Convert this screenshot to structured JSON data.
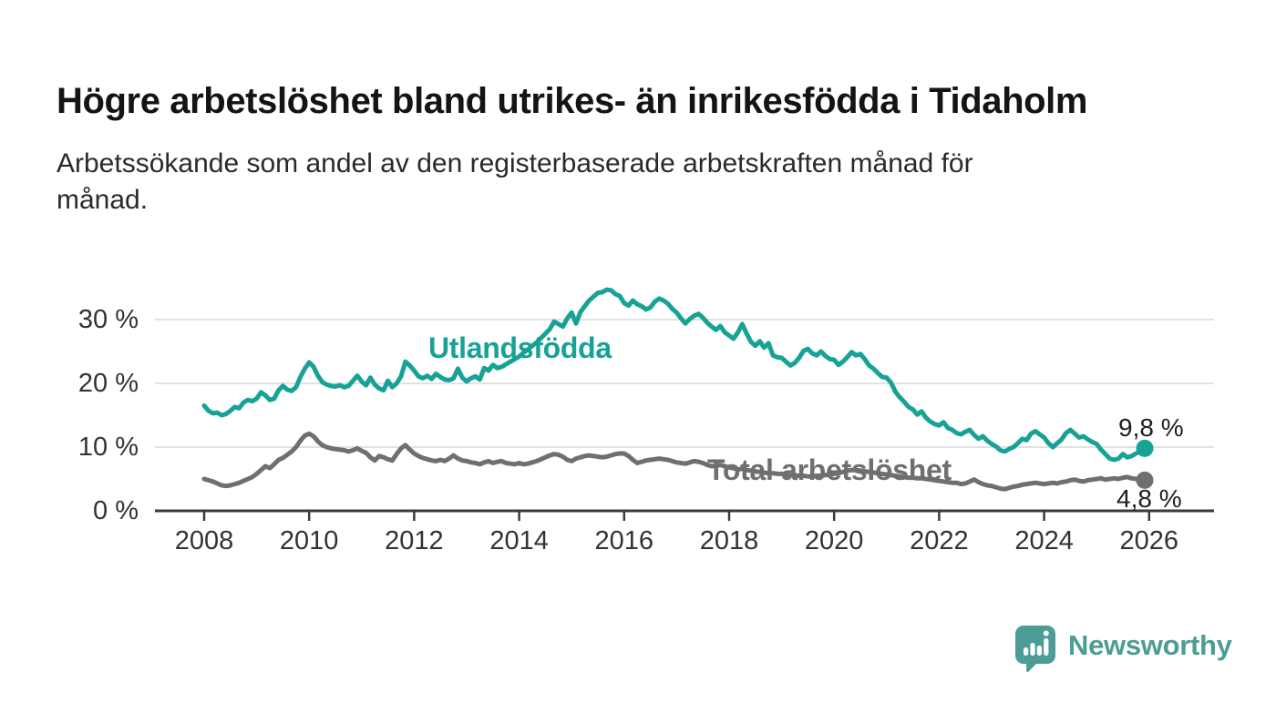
{
  "header": {
    "title": "Högre arbetslöshet bland utrikes- än inrikesfödda i Tidaholm",
    "subtitle_line1": "Arbetssökande som andel av den registerbaserade arbetskraften månad för",
    "subtitle_line2": "månad."
  },
  "branding": {
    "logo_text": "Newsworthy",
    "logo_color": "#4d9c97"
  },
  "chart_data": {
    "type": "line",
    "frequency": "monthly",
    "x_start": "2008-01",
    "x_end": "2025-12",
    "grid": "horizontal",
    "ylim": [
      0,
      36
    ],
    "xlim": [
      2008,
      2026.6
    ],
    "y_tick_values": [
      0,
      10,
      20,
      30
    ],
    "y_tick_labels": [
      "0 %",
      "10 %",
      "20 %",
      "30 %"
    ],
    "x_tick_values": [
      2008,
      2010,
      2012,
      2014,
      2016,
      2018,
      2020,
      2022,
      2024,
      2026
    ],
    "x_tick_labels": [
      "2008",
      "2010",
      "2012",
      "2014",
      "2016",
      "2018",
      "2020",
      "2022",
      "2024",
      "2026"
    ],
    "series": [
      {
        "name": "Utlandsfödda",
        "color": "#17a295",
        "end_label": "9,8 %",
        "last_value": 9.8,
        "values": [
          16.5,
          15.7,
          15.3,
          15.4,
          15.0,
          15.2,
          15.7,
          16.3,
          16.1,
          17.0,
          17.4,
          17.2,
          17.6,
          18.6,
          18.1,
          17.4,
          17.6,
          18.9,
          19.6,
          19.0,
          18.8,
          19.4,
          21.0,
          22.3,
          23.3,
          22.6,
          21.2,
          20.2,
          19.8,
          19.6,
          19.5,
          19.7,
          19.4,
          19.6,
          20.4,
          21.2,
          20.3,
          19.7,
          20.9,
          19.8,
          19.2,
          18.9,
          20.4,
          19.4,
          20.0,
          21.1,
          23.4,
          22.8,
          22.0,
          21.1,
          20.8,
          21.2,
          20.7,
          21.5,
          21.0,
          20.6,
          20.5,
          20.8,
          22.3,
          20.9,
          20.3,
          20.8,
          21.1,
          20.6,
          22.4,
          22.0,
          22.9,
          22.4,
          22.6,
          23.0,
          23.4,
          23.8,
          24.2,
          24.8,
          25.3,
          25.9,
          26.4,
          27.1,
          27.8,
          28.5,
          29.7,
          29.3,
          28.9,
          30.2,
          31.1,
          29.4,
          31.2,
          32.1,
          33.0,
          33.6,
          34.2,
          34.3,
          34.7,
          34.6,
          34.0,
          33.7,
          32.6,
          32.2,
          33.0,
          32.4,
          32.1,
          31.6,
          31.9,
          32.8,
          33.3,
          33.0,
          32.5,
          31.7,
          31.1,
          30.2,
          29.4,
          30.1,
          30.6,
          30.9,
          30.3,
          29.5,
          28.9,
          28.4,
          29.0,
          28.0,
          27.5,
          27.0,
          28.0,
          29.3,
          27.8,
          26.5,
          25.9,
          26.6,
          25.6,
          26.3,
          24.4,
          24.1,
          24.0,
          23.4,
          22.8,
          23.2,
          24.0,
          25.1,
          25.4,
          24.7,
          24.4,
          25.0,
          24.3,
          23.8,
          23.7,
          22.9,
          23.4,
          24.1,
          24.9,
          24.4,
          24.6,
          23.8,
          22.8,
          22.3,
          21.6,
          21.0,
          20.9,
          20.1,
          18.7,
          17.8,
          17.1,
          16.3,
          15.9,
          15.1,
          15.6,
          14.6,
          14.0,
          13.6,
          13.4,
          13.9,
          13.0,
          12.7,
          12.2,
          12.0,
          12.4,
          12.7,
          11.9,
          11.3,
          11.7,
          11.0,
          10.5,
          10.1,
          9.5,
          9.3,
          9.7,
          10.0,
          10.6,
          11.3,
          11.1,
          12.1,
          12.5,
          12.0,
          11.5,
          10.6,
          10.0,
          10.6,
          11.2,
          12.2,
          12.7,
          12.1,
          11.5,
          11.7,
          11.2,
          10.8,
          10.5,
          9.6,
          8.9,
          8.2,
          8.0,
          8.2,
          8.9,
          8.4,
          8.6,
          9.0,
          9.3,
          9.8
        ]
      },
      {
        "name": "Total arbetslöshet",
        "color": "#6f6f6f",
        "end_label": "4,8 %",
        "last_value": 4.8,
        "values": [
          5.0,
          4.8,
          4.6,
          4.3,
          4.0,
          3.9,
          4.0,
          4.2,
          4.4,
          4.7,
          5.0,
          5.3,
          5.8,
          6.4,
          7.0,
          6.7,
          7.3,
          8.0,
          8.3,
          8.8,
          9.3,
          10.0,
          11.0,
          11.8,
          12.1,
          11.7,
          10.9,
          10.3,
          10.0,
          9.8,
          9.7,
          9.6,
          9.5,
          9.3,
          9.5,
          9.8,
          9.4,
          9.1,
          8.4,
          7.9,
          8.6,
          8.4,
          8.1,
          7.9,
          8.9,
          9.8,
          10.3,
          9.6,
          9.0,
          8.6,
          8.3,
          8.1,
          7.9,
          7.8,
          8.0,
          7.8,
          8.2,
          8.7,
          8.2,
          7.9,
          7.8,
          7.6,
          7.5,
          7.3,
          7.6,
          7.8,
          7.5,
          7.7,
          7.8,
          7.5,
          7.4,
          7.3,
          7.5,
          7.3,
          7.4,
          7.6,
          7.8,
          8.1,
          8.4,
          8.7,
          8.9,
          8.8,
          8.5,
          8.0,
          7.8,
          8.2,
          8.4,
          8.6,
          8.7,
          8.6,
          8.5,
          8.4,
          8.5,
          8.7,
          8.9,
          9.0,
          9.0,
          8.6,
          8.0,
          7.5,
          7.7,
          7.9,
          8.0,
          8.1,
          8.2,
          8.1,
          8.0,
          7.8,
          7.6,
          7.5,
          7.4,
          7.6,
          7.8,
          7.7,
          7.5,
          7.2,
          7.0,
          7.1,
          7.2,
          7.0,
          6.8,
          6.7,
          6.5,
          6.6,
          6.4,
          6.3,
          6.2,
          6.1,
          6.0,
          5.9,
          5.9,
          5.8,
          5.8,
          5.7,
          5.6,
          5.6,
          5.5,
          5.5,
          5.4,
          5.4,
          5.5,
          5.5,
          5.6,
          5.7,
          5.8,
          5.9,
          6.1,
          6.3,
          6.4,
          6.4,
          6.3,
          6.2,
          6.1,
          6.0,
          5.9,
          5.8,
          5.7,
          5.6,
          5.5,
          5.4,
          5.3,
          5.2,
          5.2,
          5.1,
          5.1,
          5.0,
          4.9,
          4.8,
          4.7,
          4.6,
          4.5,
          4.4,
          4.4,
          4.2,
          4.3,
          4.6,
          4.9,
          4.5,
          4.2,
          4.0,
          3.9,
          3.7,
          3.5,
          3.4,
          3.6,
          3.8,
          3.9,
          4.1,
          4.2,
          4.3,
          4.4,
          4.3,
          4.2,
          4.3,
          4.4,
          4.3,
          4.5,
          4.6,
          4.8,
          4.9,
          4.7,
          4.6,
          4.8,
          4.9,
          5.0,
          5.1,
          4.9,
          5.0,
          5.1,
          5.0,
          5.2,
          5.3,
          5.1,
          5.0,
          4.9,
          4.8
        ]
      }
    ]
  }
}
